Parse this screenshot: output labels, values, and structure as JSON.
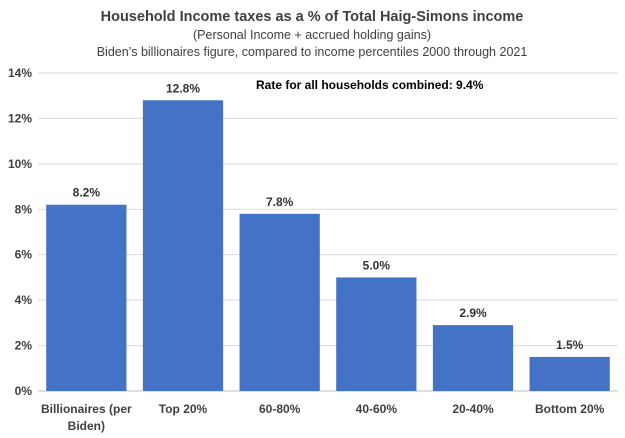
{
  "chart_data": {
    "type": "bar",
    "title": "Household Income taxes as a % of Total Haig-Simons income",
    "subtitle": "(Personal Income + accrued holding gains)",
    "subtitle2": "Biden’s billionaires figure, compared to income percentiles 2000 through 2021",
    "annotation": "Rate for all households combined: 9.4%",
    "categories": [
      [
        "Billionaires (per",
        "Biden)"
      ],
      [
        "Top 20%"
      ],
      [
        "60-80%"
      ],
      [
        "40-60%"
      ],
      [
        "20-40%"
      ],
      [
        "Bottom 20%"
      ]
    ],
    "values": [
      8.2,
      12.8,
      7.8,
      5.0,
      2.9,
      1.5
    ],
    "value_labels": [
      "8.2%",
      "12.8%",
      "7.8%",
      "5.0%",
      "2.9%",
      "1.5%"
    ],
    "ylim": [
      0,
      14
    ],
    "yticks": [
      0,
      2,
      4,
      6,
      8,
      10,
      12,
      14
    ],
    "ytick_labels": [
      "0%",
      "2%",
      "4%",
      "6%",
      "8%",
      "10%",
      "12%",
      "14%"
    ],
    "xlabel": "",
    "ylabel": "",
    "grid": true,
    "legend": "none",
    "bar_color": "#4472C4"
  }
}
